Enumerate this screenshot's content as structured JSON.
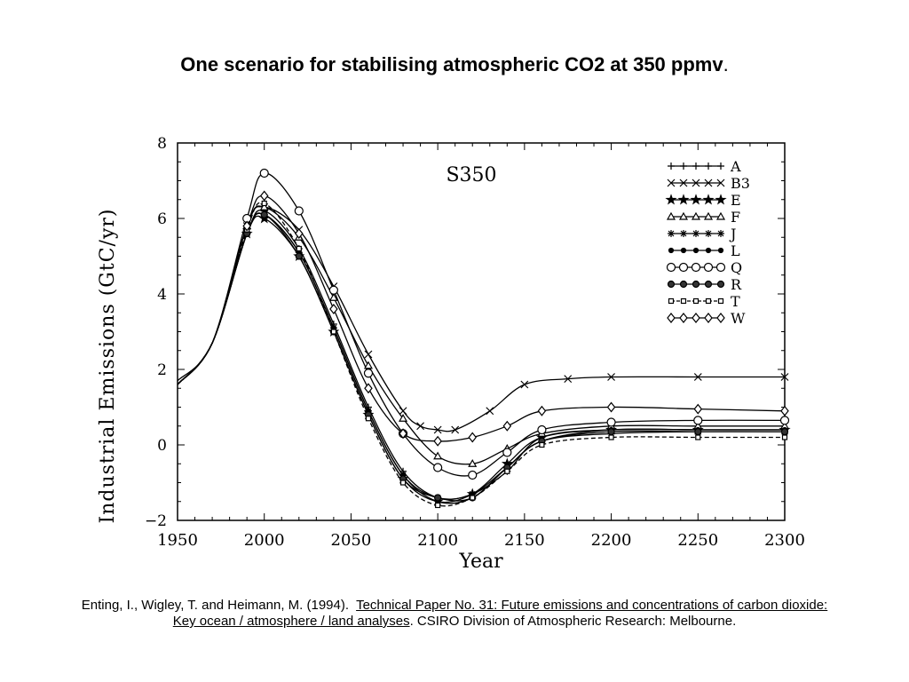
{
  "slide": {
    "title": "One scenario for stabilising atmospheric CO2 at 350 ppmv",
    "title_suffix": "."
  },
  "citation": {
    "authors": "Enting, I., Wigley, T. and Heimann, M. (1994).",
    "report_title": "Technical Paper No. 31: Future emissions and concentrations of carbon dioxide:",
    "subtitle": "Key ocean / atmosphere / land analyses",
    "publisher": ". CSIRO Division of Atmospheric Research: Melbourne."
  },
  "chart_data": {
    "type": "line",
    "title": "S350",
    "xlabel": "Year",
    "ylabel": "Industrial Emissions (GtC/yr)",
    "xlim": [
      1950,
      2300
    ],
    "ylim": [
      -2,
      8
    ],
    "xticks": [
      1950,
      2000,
      2050,
      2100,
      2150,
      2200,
      2250,
      2300
    ],
    "yticks": [
      -2,
      0,
      2,
      4,
      6,
      8
    ],
    "legend_position": "top-right",
    "grid": false,
    "series": [
      {
        "name": "A",
        "marker": "plus",
        "x": [
          1950,
          1970,
          1990,
          2000,
          2020,
          2040,
          2060,
          2080,
          2100,
          2120,
          2140,
          2160,
          2200,
          2250,
          2300
        ],
        "y": [
          1.6,
          2.7,
          5.6,
          6.2,
          5.2,
          3.2,
          1.0,
          -0.7,
          -1.4,
          -1.3,
          -0.7,
          0.2,
          0.4,
          0.4,
          0.4
        ]
      },
      {
        "name": "B3",
        "marker": "x",
        "x": [
          1950,
          1970,
          1990,
          2000,
          2020,
          2040,
          2060,
          2080,
          2090,
          2100,
          2110,
          2130,
          2150,
          2175,
          2200,
          2250,
          2300
        ],
        "y": [
          1.6,
          2.7,
          5.8,
          6.3,
          5.7,
          4.2,
          2.4,
          0.9,
          0.5,
          0.4,
          0.4,
          0.9,
          1.6,
          1.75,
          1.8,
          1.8,
          1.8
        ]
      },
      {
        "name": "E",
        "marker": "star",
        "x": [
          1950,
          1970,
          1990,
          2000,
          2020,
          2040,
          2060,
          2080,
          2100,
          2120,
          2140,
          2160,
          2200,
          2250,
          2300
        ],
        "y": [
          1.6,
          2.7,
          5.6,
          6.0,
          5.0,
          3.0,
          0.8,
          -0.9,
          -1.5,
          -1.3,
          -0.5,
          0.2,
          0.4,
          0.4,
          0.4
        ]
      },
      {
        "name": "F",
        "marker": "triangle",
        "x": [
          1950,
          1970,
          1990,
          2000,
          2020,
          2040,
          2060,
          2080,
          2100,
          2120,
          2140,
          2160,
          2200,
          2250,
          2300
        ],
        "y": [
          1.6,
          2.7,
          5.8,
          6.3,
          5.5,
          3.9,
          2.1,
          0.7,
          -0.3,
          -0.5,
          -0.1,
          0.3,
          0.5,
          0.5,
          0.5
        ]
      },
      {
        "name": "J",
        "marker": "asterisk",
        "x": [
          1950,
          1970,
          1990,
          2000,
          2020,
          2040,
          2060,
          2080,
          2100,
          2120,
          2140,
          2160,
          2200,
          2250,
          2300
        ],
        "y": [
          1.6,
          2.7,
          5.6,
          6.1,
          5.1,
          3.1,
          0.9,
          -0.8,
          -1.4,
          -1.3,
          -0.6,
          0.1,
          0.3,
          0.35,
          0.35
        ]
      },
      {
        "name": "L",
        "marker": "dot",
        "x": [
          1950,
          1970,
          1990,
          2000,
          2020,
          2040,
          2060,
          2080,
          2100,
          2120,
          2140,
          2160,
          2200,
          2250,
          2300
        ],
        "y": [
          1.6,
          2.7,
          5.6,
          6.1,
          5.1,
          3.1,
          0.9,
          -0.8,
          -1.5,
          -1.4,
          -0.6,
          0.1,
          0.4,
          0.4,
          0.4
        ]
      },
      {
        "name": "Q",
        "marker": "circle",
        "x": [
          1950,
          1970,
          1990,
          2000,
          2020,
          2040,
          2060,
          2080,
          2100,
          2120,
          2140,
          2160,
          2200,
          2250,
          2300
        ],
        "y": [
          1.7,
          2.7,
          6.0,
          7.2,
          6.2,
          4.1,
          1.9,
          0.3,
          -0.6,
          -0.8,
          -0.2,
          0.4,
          0.6,
          0.65,
          0.65
        ]
      },
      {
        "name": "R",
        "marker": "filled-circle",
        "x": [
          1950,
          1970,
          1990,
          2000,
          2020,
          2040,
          2060,
          2080,
          2100,
          2120,
          2140,
          2160,
          2200,
          2250,
          2300
        ],
        "y": [
          1.6,
          2.7,
          5.6,
          6.1,
          5.0,
          3.0,
          0.8,
          -0.9,
          -1.4,
          -1.4,
          -0.6,
          0.1,
          0.35,
          0.35,
          0.35
        ]
      },
      {
        "name": "T",
        "marker": "square",
        "x": [
          1950,
          1970,
          1990,
          2000,
          2020,
          2040,
          2060,
          2080,
          2100,
          2120,
          2140,
          2160,
          2200,
          2250,
          2300
        ],
        "y": [
          1.6,
          2.7,
          5.7,
          6.4,
          5.2,
          3.0,
          0.7,
          -1.0,
          -1.6,
          -1.4,
          -0.7,
          0.0,
          0.2,
          0.2,
          0.2
        ]
      },
      {
        "name": "W",
        "marker": "diamond",
        "x": [
          1950,
          1970,
          1990,
          2000,
          2020,
          2040,
          2060,
          2080,
          2100,
          2120,
          2140,
          2160,
          2200,
          2250,
          2300
        ],
        "y": [
          1.6,
          2.7,
          5.8,
          6.6,
          5.6,
          3.6,
          1.5,
          0.3,
          0.1,
          0.2,
          0.5,
          0.9,
          1.0,
          0.95,
          0.9
        ]
      }
    ]
  }
}
